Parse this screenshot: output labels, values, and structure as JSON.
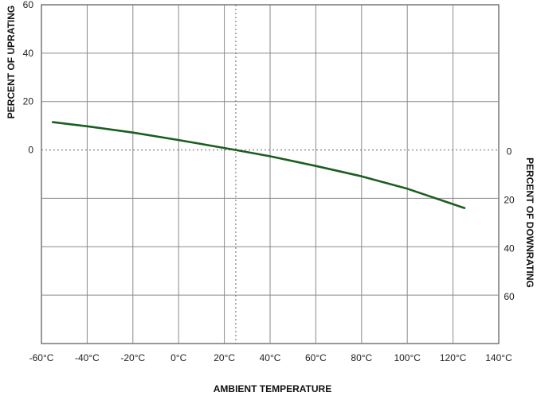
{
  "chart_data": {
    "type": "line",
    "title": "",
    "xlabel": "AMBIENT TEMPERATURE",
    "ylabel_left": "PERCENT OF UPRATING",
    "ylabel_right": "PERCENT OF DOWNRATING",
    "x_unit": "°C",
    "xlim": [
      -60,
      140
    ],
    "ylim": [
      -80,
      60
    ],
    "x_ticks": [
      -60,
      -40,
      -20,
      0,
      20,
      40,
      60,
      80,
      100,
      120,
      140
    ],
    "x_tick_labels": [
      "-60°C",
      "-40°C",
      "-20°C",
      "0°C",
      "20°C",
      "40°C",
      "60°C",
      "80°C",
      "100°C",
      "120°C",
      "140°C"
    ],
    "y_left_ticks": [
      0,
      20,
      40,
      60
    ],
    "y_left_tick_labels": [
      "0",
      "20",
      "40",
      "60"
    ],
    "y_right_ticks": [
      0,
      -20,
      -40,
      -60
    ],
    "y_right_tick_labels": [
      "0",
      "20",
      "40",
      "60"
    ],
    "grid": true,
    "reference_lines": {
      "x": 25,
      "y": 0,
      "style": "dotted"
    },
    "series": [
      {
        "color": "#1b5e20",
        "x": [
          -55,
          -40,
          -20,
          0,
          20,
          25,
          40,
          60,
          80,
          100,
          125
        ],
        "y": [
          11.5,
          9.8,
          7.2,
          4.1,
          0.8,
          0,
          -2.6,
          -6.6,
          -10.9,
          -16.0,
          -24.0
        ]
      }
    ]
  }
}
